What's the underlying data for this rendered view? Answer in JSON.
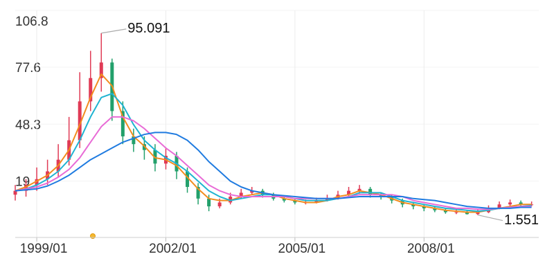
{
  "chart_data": {
    "type": "candlestick",
    "x": [
      "1998/07",
      "1998/10",
      "1999/01",
      "1999/04",
      "1999/07",
      "1999/10",
      "2000/01",
      "2000/04",
      "2000/07",
      "2000/10",
      "2001/01",
      "2001/04",
      "2001/07",
      "2001/10",
      "2002/01",
      "2002/04",
      "2002/07",
      "2002/10",
      "2003/01",
      "2003/04",
      "2003/07",
      "2003/10",
      "2004/01",
      "2004/04",
      "2004/07",
      "2004/10",
      "2005/01",
      "2005/04",
      "2005/07",
      "2005/10",
      "2006/01",
      "2006/04",
      "2006/07",
      "2006/10",
      "2007/01",
      "2007/04",
      "2007/07",
      "2007/10",
      "2008/01",
      "2008/04",
      "2008/07",
      "2008/10",
      "2009/01",
      "2009/04",
      "2009/07",
      "2009/10",
      "2010/01",
      "2010/04",
      "2010/07"
    ],
    "open": [
      12,
      14,
      17,
      20,
      24,
      30,
      40,
      60,
      72,
      80,
      55,
      42,
      38,
      35,
      28,
      32,
      24,
      16,
      10,
      6,
      8,
      11,
      13,
      14,
      12,
      10,
      9,
      8,
      8,
      9,
      10,
      12,
      14,
      15,
      12,
      11,
      9,
      7,
      6,
      5,
      4,
      3,
      3,
      2,
      3,
      5,
      7,
      8,
      7
    ],
    "close": [
      14,
      17,
      20,
      24,
      30,
      40,
      60,
      72,
      80,
      55,
      42,
      38,
      35,
      28,
      32,
      24,
      16,
      10,
      6,
      8,
      11,
      13,
      14,
      12,
      10,
      9,
      8,
      8,
      9,
      10,
      12,
      14,
      15,
      12,
      11,
      9,
      7,
      6,
      5,
      4,
      3,
      3,
      2,
      3,
      5,
      7,
      8,
      7,
      7
    ],
    "high": [
      17,
      20,
      26,
      30,
      38,
      52,
      75,
      86,
      95.091,
      82,
      60,
      46,
      42,
      38,
      36,
      34,
      26,
      18,
      12,
      10,
      13,
      15,
      16,
      15,
      13,
      11,
      10,
      9.5,
      10.5,
      12,
      14,
      16,
      17,
      16,
      13,
      12,
      10,
      8,
      7,
      6,
      5,
      4.5,
      4,
      4.5,
      6.5,
      8.5,
      9.5,
      9,
      8.5
    ],
    "low": [
      9,
      11,
      14,
      17,
      21,
      27,
      36,
      55,
      65,
      50,
      38,
      34,
      30,
      24,
      25,
      20,
      13,
      7,
      3.5,
      5,
      7,
      10,
      12,
      10.5,
      9,
      8,
      7,
      7,
      7.5,
      8.5,
      9.5,
      11,
      12.5,
      10.5,
      9.5,
      7.5,
      5.5,
      4.5,
      3.5,
      3,
      2.2,
      2,
      1.8,
      1.551,
      2.5,
      4.5,
      6,
      6,
      6
    ],
    "up_color": "#e03a55",
    "down_color": "#22a06b",
    "series": [
      {
        "color": "#f28c1e",
        "values": [
          14,
          16,
          19,
          22,
          27,
          35,
          48,
          62,
          74,
          68,
          52,
          42,
          37,
          31,
          30,
          27,
          21,
          15,
          10,
          9,
          9,
          11,
          12,
          13,
          12,
          10,
          9,
          8,
          8,
          9,
          11,
          12,
          14,
          13,
          12,
          10,
          8,
          7,
          6,
          5,
          4,
          3.5,
          3,
          3,
          4,
          5,
          6,
          7,
          7
        ]
      },
      {
        "color": "#1fb3d1",
        "values": [
          14,
          15,
          17,
          20,
          24,
          30,
          40,
          52,
          62,
          64,
          58,
          48,
          40,
          35,
          31,
          28,
          24,
          19,
          14,
          11,
          9,
          10,
          11,
          12,
          12,
          11,
          10,
          9,
          9,
          9,
          10,
          11,
          13,
          13,
          13,
          11,
          9,
          8,
          7,
          6,
          5,
          4.5,
          4,
          3.5,
          4,
          5,
          5.5,
          6,
          6.5
        ]
      },
      {
        "color": "#e86bd6",
        "values": [
          14,
          15,
          16,
          18,
          21,
          25,
          31,
          39,
          47,
          52,
          52,
          50,
          46,
          41,
          36,
          32,
          27,
          22,
          17,
          14,
          12,
          11,
          11,
          11,
          11,
          11,
          10,
          10,
          10,
          10,
          10,
          11,
          12,
          12,
          12,
          12,
          11,
          9,
          8,
          7,
          6,
          5,
          5,
          4.5,
          4.5,
          5,
          5.5,
          6,
          6
        ]
      },
      {
        "color": "#1f7be0",
        "values": [
          14,
          14.5,
          15,
          16.5,
          19,
          22,
          26,
          30,
          33,
          36,
          39,
          41,
          43,
          44,
          44,
          43,
          40,
          35,
          29,
          24,
          19,
          16,
          14,
          13,
          12,
          11.5,
          11,
          10.5,
          10,
          10,
          10,
          10.5,
          11,
          11,
          11,
          11,
          11,
          10,
          9.5,
          9,
          8,
          7,
          6,
          5.5,
          5,
          5,
          5,
          5.5,
          5.5
        ]
      }
    ],
    "annotations": [
      {
        "x": "2000/07",
        "value": 95.091
      },
      {
        "x": "2009/04",
        "value": 1.551
      }
    ],
    "xlim": [
      "1998/07",
      "2010/09"
    ],
    "xticks": [
      "1999/01",
      "2002/01",
      "2005/01",
      "2008/01"
    ],
    "ylim": [
      -10,
      106.8
    ],
    "yticks": [
      19,
      48.3,
      77.6,
      106.8
    ],
    "grid": true
  }
}
